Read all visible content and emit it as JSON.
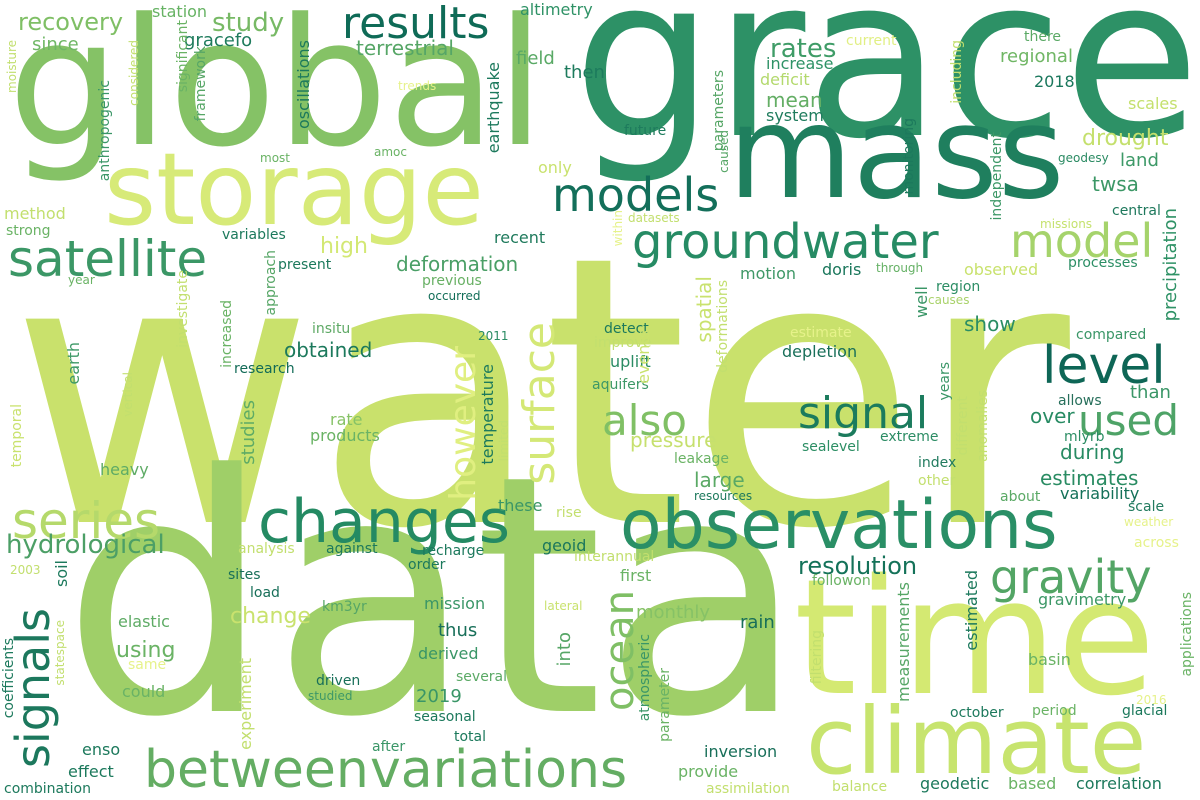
{
  "cloud": {
    "words": [
      {
        "text": "water",
        "color": "#c9e16c"
      },
      {
        "text": "data",
        "color": "#9fcf68"
      },
      {
        "text": "grace",
        "color": "#2d9166"
      },
      {
        "text": "global",
        "color": "#85c266"
      },
      {
        "text": "mass",
        "color": "#1f7f5e"
      },
      {
        "text": "storage",
        "color": "#d7ea78"
      },
      {
        "text": "time",
        "color": "#d4e972"
      },
      {
        "text": "climate",
        "color": "#c7e46e"
      },
      {
        "text": "observations",
        "color": "#2a8f66"
      },
      {
        "text": "changes",
        "color": "#248a63"
      },
      {
        "text": "between",
        "color": "#64ad63"
      },
      {
        "text": "variations",
        "color": "#64ad63"
      },
      {
        "text": "groundwater",
        "color": "#268b64"
      },
      {
        "text": "satellite",
        "color": "#3b9766"
      },
      {
        "text": "models",
        "color": "#136f5a"
      },
      {
        "text": "model",
        "color": "#a5d36b"
      },
      {
        "text": "results",
        "color": "#0f6b57"
      },
      {
        "text": "signal",
        "color": "#1b7b5d"
      },
      {
        "text": "level",
        "color": "#0e6656"
      },
      {
        "text": "used",
        "color": "#4ea367"
      },
      {
        "text": "gravity",
        "color": "#53a565"
      },
      {
        "text": "series",
        "color": "#b5d96b"
      },
      {
        "text": "signals",
        "color": "#1c785d"
      },
      {
        "text": "also",
        "color": "#80c065"
      },
      {
        "text": "surface",
        "color": "#d4e876"
      },
      {
        "text": "however",
        "color": "#e0ef80"
      },
      {
        "text": "ocean",
        "color": "#7fbf65"
      },
      {
        "text": "hydrological",
        "color": "#4c9f66"
      },
      {
        "text": "resolution",
        "color": "#147259"
      },
      {
        "text": "rates",
        "color": "#3f9c67"
      },
      {
        "text": "recovery",
        "color": "#7fbf65"
      },
      {
        "text": "study",
        "color": "#77b965"
      },
      {
        "text": "terrestrial",
        "color": "#56a666"
      },
      {
        "text": "since",
        "color": "#6fb765"
      },
      {
        "text": "gracefo",
        "color": "#1e7b5c"
      },
      {
        "text": "station",
        "color": "#67b364"
      },
      {
        "text": "altimetry",
        "color": "#2f9266"
      },
      {
        "text": "field",
        "color": "#59a965"
      },
      {
        "text": "then",
        "color": "#1d7b5d"
      },
      {
        "text": "increase",
        "color": "#2e9266"
      },
      {
        "text": "deficit",
        "color": "#b3d96d"
      },
      {
        "text": "mean",
        "color": "#64ae65"
      },
      {
        "text": "system",
        "color": "#1f7c5d"
      },
      {
        "text": "current",
        "color": "#e1ef84"
      },
      {
        "text": "there",
        "color": "#5aa965"
      },
      {
        "text": "regional",
        "color": "#6fb664"
      },
      {
        "text": "2018",
        "color": "#1a775c"
      },
      {
        "text": "scales",
        "color": "#c4e06d"
      },
      {
        "text": "future",
        "color": "#1e7b5d"
      },
      {
        "text": "drought",
        "color": "#c4e06d"
      },
      {
        "text": "land",
        "color": "#3d9967"
      },
      {
        "text": "geodesy",
        "color": "#2a8a62"
      },
      {
        "text": "twsa",
        "color": "#3c9766"
      },
      {
        "text": "central",
        "color": "#1e785c"
      },
      {
        "text": "missions",
        "color": "#c5e26e"
      },
      {
        "text": "processes",
        "color": "#2c8e65"
      },
      {
        "text": "high",
        "color": "#d3e874"
      },
      {
        "text": "recent",
        "color": "#1f7a5c"
      },
      {
        "text": "deformation",
        "color": "#4a9f66"
      },
      {
        "text": "previous",
        "color": "#68b064"
      },
      {
        "text": "occurred",
        "color": "#126e58"
      },
      {
        "text": "motion",
        "color": "#3f9867"
      },
      {
        "text": "doris",
        "color": "#1b775c"
      },
      {
        "text": "through",
        "color": "#65b165"
      },
      {
        "text": "observed",
        "color": "#c9e26e"
      },
      {
        "text": "region",
        "color": "#2b8d64"
      },
      {
        "text": "causes",
        "color": "#a9d26a"
      },
      {
        "text": "show",
        "color": "#2a8d64"
      },
      {
        "text": "compared",
        "color": "#3a9667"
      },
      {
        "text": "precipitation",
        "color": "#2f9266"
      },
      {
        "text": "obtained",
        "color": "#1c795c"
      },
      {
        "text": "insitu",
        "color": "#5ea965"
      },
      {
        "text": "2011",
        "color": "#2b8c64"
      },
      {
        "text": "detect",
        "color": "#1c795c"
      },
      {
        "text": "improve",
        "color": "#c2df6e"
      },
      {
        "text": "uplift",
        "color": "#2b8c64"
      },
      {
        "text": "aquifers",
        "color": "#3d9867"
      },
      {
        "text": "estimate",
        "color": "#e6f28a"
      },
      {
        "text": "depletion",
        "color": "#186f59"
      },
      {
        "text": "research",
        "color": "#126b57"
      },
      {
        "text": "earth",
        "color": "#3d9967"
      },
      {
        "text": "rate",
        "color": "#86c266"
      },
      {
        "text": "products",
        "color": "#6ab365"
      },
      {
        "text": "pressure",
        "color": "#c6e06e"
      },
      {
        "text": "temperature",
        "color": "#1d7a5c"
      },
      {
        "text": "leakage",
        "color": "#6ab365"
      },
      {
        "text": "sealevel",
        "color": "#2c8e64"
      },
      {
        "text": "extreme",
        "color": "#2b8c64"
      },
      {
        "text": "over",
        "color": "#288b63"
      },
      {
        "text": "during",
        "color": "#288b63"
      },
      {
        "text": "allows",
        "color": "#276f5b"
      },
      {
        "text": "than",
        "color": "#3a9667"
      },
      {
        "text": "mlyrb",
        "color": "#2c8d64"
      },
      {
        "text": "index",
        "color": "#227b5f"
      },
      {
        "text": "other",
        "color": "#c2df6e"
      },
      {
        "text": "estimates",
        "color": "#2a8c63"
      },
      {
        "text": "variability",
        "color": "#137058"
      },
      {
        "text": "about",
        "color": "#5aa965"
      },
      {
        "text": "scale",
        "color": "#227b5f"
      },
      {
        "text": "weather",
        "color": "#e6f28a"
      },
      {
        "text": "across",
        "color": "#e6f28a"
      },
      {
        "text": "heavy",
        "color": "#5eab65"
      },
      {
        "text": "studies",
        "color": "#5eab65"
      },
      {
        "text": "large",
        "color": "#5aa965"
      },
      {
        "text": "resources",
        "color": "#1c795c"
      },
      {
        "text": "these",
        "color": "#3a9667"
      },
      {
        "text": "rise",
        "color": "#c2df6e"
      },
      {
        "text": "analysis",
        "color": "#c2df6e"
      },
      {
        "text": "against",
        "color": "#1c795c"
      },
      {
        "text": "recharge",
        "color": "#1c795c"
      },
      {
        "text": "geoid",
        "color": "#1b775c"
      },
      {
        "text": "interannual",
        "color": "#c2df6e"
      },
      {
        "text": "order",
        "color": "#1c795c"
      },
      {
        "text": "first",
        "color": "#6ab365"
      },
      {
        "text": "followon",
        "color": "#6ab365"
      },
      {
        "text": "gravimetry",
        "color": "#3d9867"
      },
      {
        "text": "2003",
        "color": "#c2df6e"
      },
      {
        "text": "sites",
        "color": "#186f59"
      },
      {
        "text": "load",
        "color": "#186f59"
      },
      {
        "text": "km3yr",
        "color": "#56a666"
      },
      {
        "text": "mission",
        "color": "#3a9667"
      },
      {
        "text": "lateral",
        "color": "#c9e26e"
      },
      {
        "text": "monthly",
        "color": "#86c266"
      },
      {
        "text": "rain",
        "color": "#186f59"
      },
      {
        "text": "change",
        "color": "#c9e26e"
      },
      {
        "text": "elastic",
        "color": "#5eab65"
      },
      {
        "text": "using",
        "color": "#6ab365"
      },
      {
        "text": "thus",
        "color": "#186f59"
      },
      {
        "text": "derived",
        "color": "#3a9667"
      },
      {
        "text": "same",
        "color": "#e6f28a"
      },
      {
        "text": "could",
        "color": "#6ab365"
      },
      {
        "text": "2019",
        "color": "#3a9667"
      },
      {
        "text": "several",
        "color": "#5aa965"
      },
      {
        "text": "driven",
        "color": "#186f59"
      },
      {
        "text": "studied",
        "color": "#3d9867"
      },
      {
        "text": "seasonal",
        "color": "#1c795c"
      },
      {
        "text": "total",
        "color": "#1c795c"
      },
      {
        "text": "enso",
        "color": "#1c795c"
      },
      {
        "text": "effect",
        "color": "#1c795c"
      },
      {
        "text": "after",
        "color": "#3a9667"
      },
      {
        "text": "inversion",
        "color": "#186f59"
      },
      {
        "text": "provide",
        "color": "#6ab365"
      },
      {
        "text": "combination",
        "color": "#1c795c"
      },
      {
        "text": "assimilation",
        "color": "#c2df6e"
      },
      {
        "text": "balance",
        "color": "#c2df6e"
      },
      {
        "text": "geodetic",
        "color": "#1c795c"
      },
      {
        "text": "based",
        "color": "#6ab365"
      },
      {
        "text": "correlation",
        "color": "#1c795c"
      },
      {
        "text": "october",
        "color": "#1c795c"
      },
      {
        "text": "period",
        "color": "#6ab365"
      },
      {
        "text": "glacial",
        "color": "#1c795c"
      },
      {
        "text": "basin",
        "color": "#6ab365"
      },
      {
        "text": "2016",
        "color": "#e6f28a"
      },
      {
        "text": "method",
        "color": "#c2df6e"
      },
      {
        "text": "strong",
        "color": "#6ab365"
      },
      {
        "text": "variables",
        "color": "#1c795c"
      },
      {
        "text": "present",
        "color": "#1c795c"
      },
      {
        "text": "year",
        "color": "#6ab365"
      },
      {
        "text": "only",
        "color": "#c9e26e"
      },
      {
        "text": "datasets",
        "color": "#c2df6e"
      },
      {
        "text": "trends",
        "color": "#e6f28a"
      },
      {
        "text": "amoc",
        "color": "#6ab365"
      },
      {
        "text": "most",
        "color": "#6ab365"
      },
      {
        "text": "moisture",
        "color": "#c2df6e"
      },
      {
        "text": "considered",
        "color": "#c2df6e"
      },
      {
        "text": "significant",
        "color": "#6ab365"
      },
      {
        "text": "framework",
        "color": "#56a666"
      },
      {
        "text": "anthropogenic",
        "color": "#3a9667"
      },
      {
        "text": "oscillations",
        "color": "#1c795c"
      },
      {
        "text": "earthquake",
        "color": "#1c795c"
      },
      {
        "text": "parameters",
        "color": "#56a666"
      },
      {
        "text": "caused",
        "color": "#56a666"
      },
      {
        "text": "monitoring",
        "color": "#1c795c"
      },
      {
        "text": "including",
        "color": "#c2df6e"
      },
      {
        "text": "independent",
        "color": "#3d9867"
      },
      {
        "text": "within",
        "color": "#e6f28a"
      },
      {
        "text": "approach",
        "color": "#56a666"
      },
      {
        "text": "investigate",
        "color": "#c2df6e"
      },
      {
        "text": "increased",
        "color": "#6ab365"
      },
      {
        "text": "vertical",
        "color": "#c2df6e"
      },
      {
        "text": "temporal",
        "color": "#c9e26e"
      },
      {
        "text": "events",
        "color": "#c9e26e"
      },
      {
        "text": "spatial",
        "color": "#c9e26e"
      },
      {
        "text": "deformations",
        "color": "#c2df6e"
      },
      {
        "text": "years",
        "color": "#3a9667"
      },
      {
        "text": "different",
        "color": "#c2df6e"
      },
      {
        "text": "anomalies",
        "color": "#c2df6e"
      },
      {
        "text": "well",
        "color": "#3a9667"
      },
      {
        "text": "limited",
        "color": "#c2df6e"
      },
      {
        "text": "into",
        "color": "#56a666"
      },
      {
        "text": "experiment",
        "color": "#c2df6e"
      },
      {
        "text": "atmospheric",
        "color": "#3a9667"
      },
      {
        "text": "parameter",
        "color": "#6ab365"
      },
      {
        "text": "filtering",
        "color": "#c2df6e"
      },
      {
        "text": "measurements",
        "color": "#56a666"
      },
      {
        "text": "estimated",
        "color": "#1c795c"
      },
      {
        "text": "applications",
        "color": "#6ab365"
      },
      {
        "text": "coefficients",
        "color": "#1c795c"
      },
      {
        "text": "statespace",
        "color": "#c2df6e"
      },
      {
        "text": "soil",
        "color": "#1c795c"
      }
    ]
  }
}
